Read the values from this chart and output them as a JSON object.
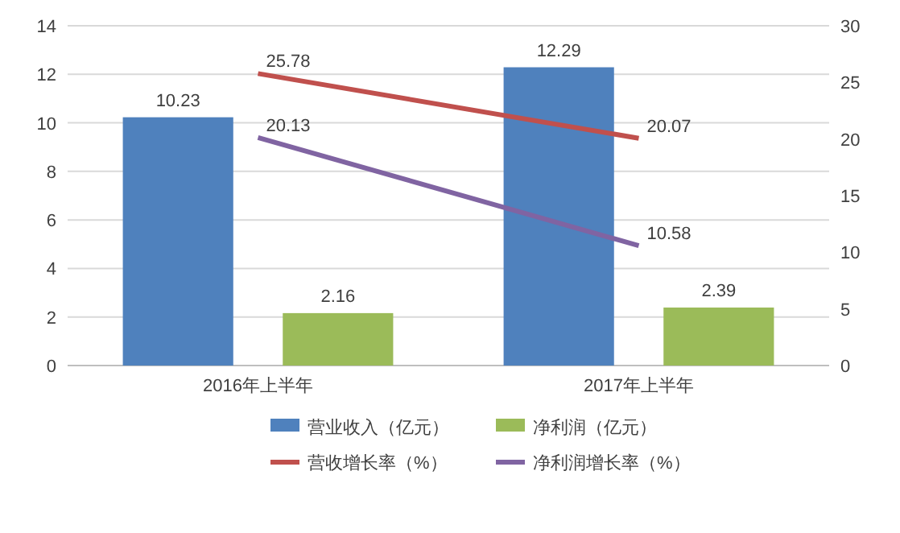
{
  "chart_data": {
    "type": "bar",
    "categories": [
      "2016年上半年",
      "2017年上半年"
    ],
    "series": [
      {
        "name": "营业收入（亿元）",
        "color": "#4f81bd",
        "values": [
          10.23,
          12.29
        ]
      },
      {
        "name": "净利润（亿元）",
        "color": "#9bbb59",
        "values": [
          2.16,
          2.39
        ]
      },
      {
        "name": "营收增长率（%）",
        "color": "#c0504d",
        "values": [
          25.78,
          20.07
        ],
        "type": "line",
        "axis": "y2"
      },
      {
        "name": "净利润增长率（%）",
        "color": "#8064a2",
        "values": [
          20.13,
          10.58
        ],
        "type": "line",
        "axis": "y2"
      }
    ],
    "ylim": [
      0,
      14
    ],
    "yticks": [
      0,
      2,
      4,
      6,
      8,
      10,
      12,
      14
    ],
    "y2lim": [
      0,
      30
    ],
    "y2ticks": [
      0,
      5,
      10,
      15,
      20,
      25,
      30
    ],
    "grid": "y",
    "legend": "bottom",
    "data_labels": true,
    "marker": "none",
    "line_style": "solid"
  }
}
